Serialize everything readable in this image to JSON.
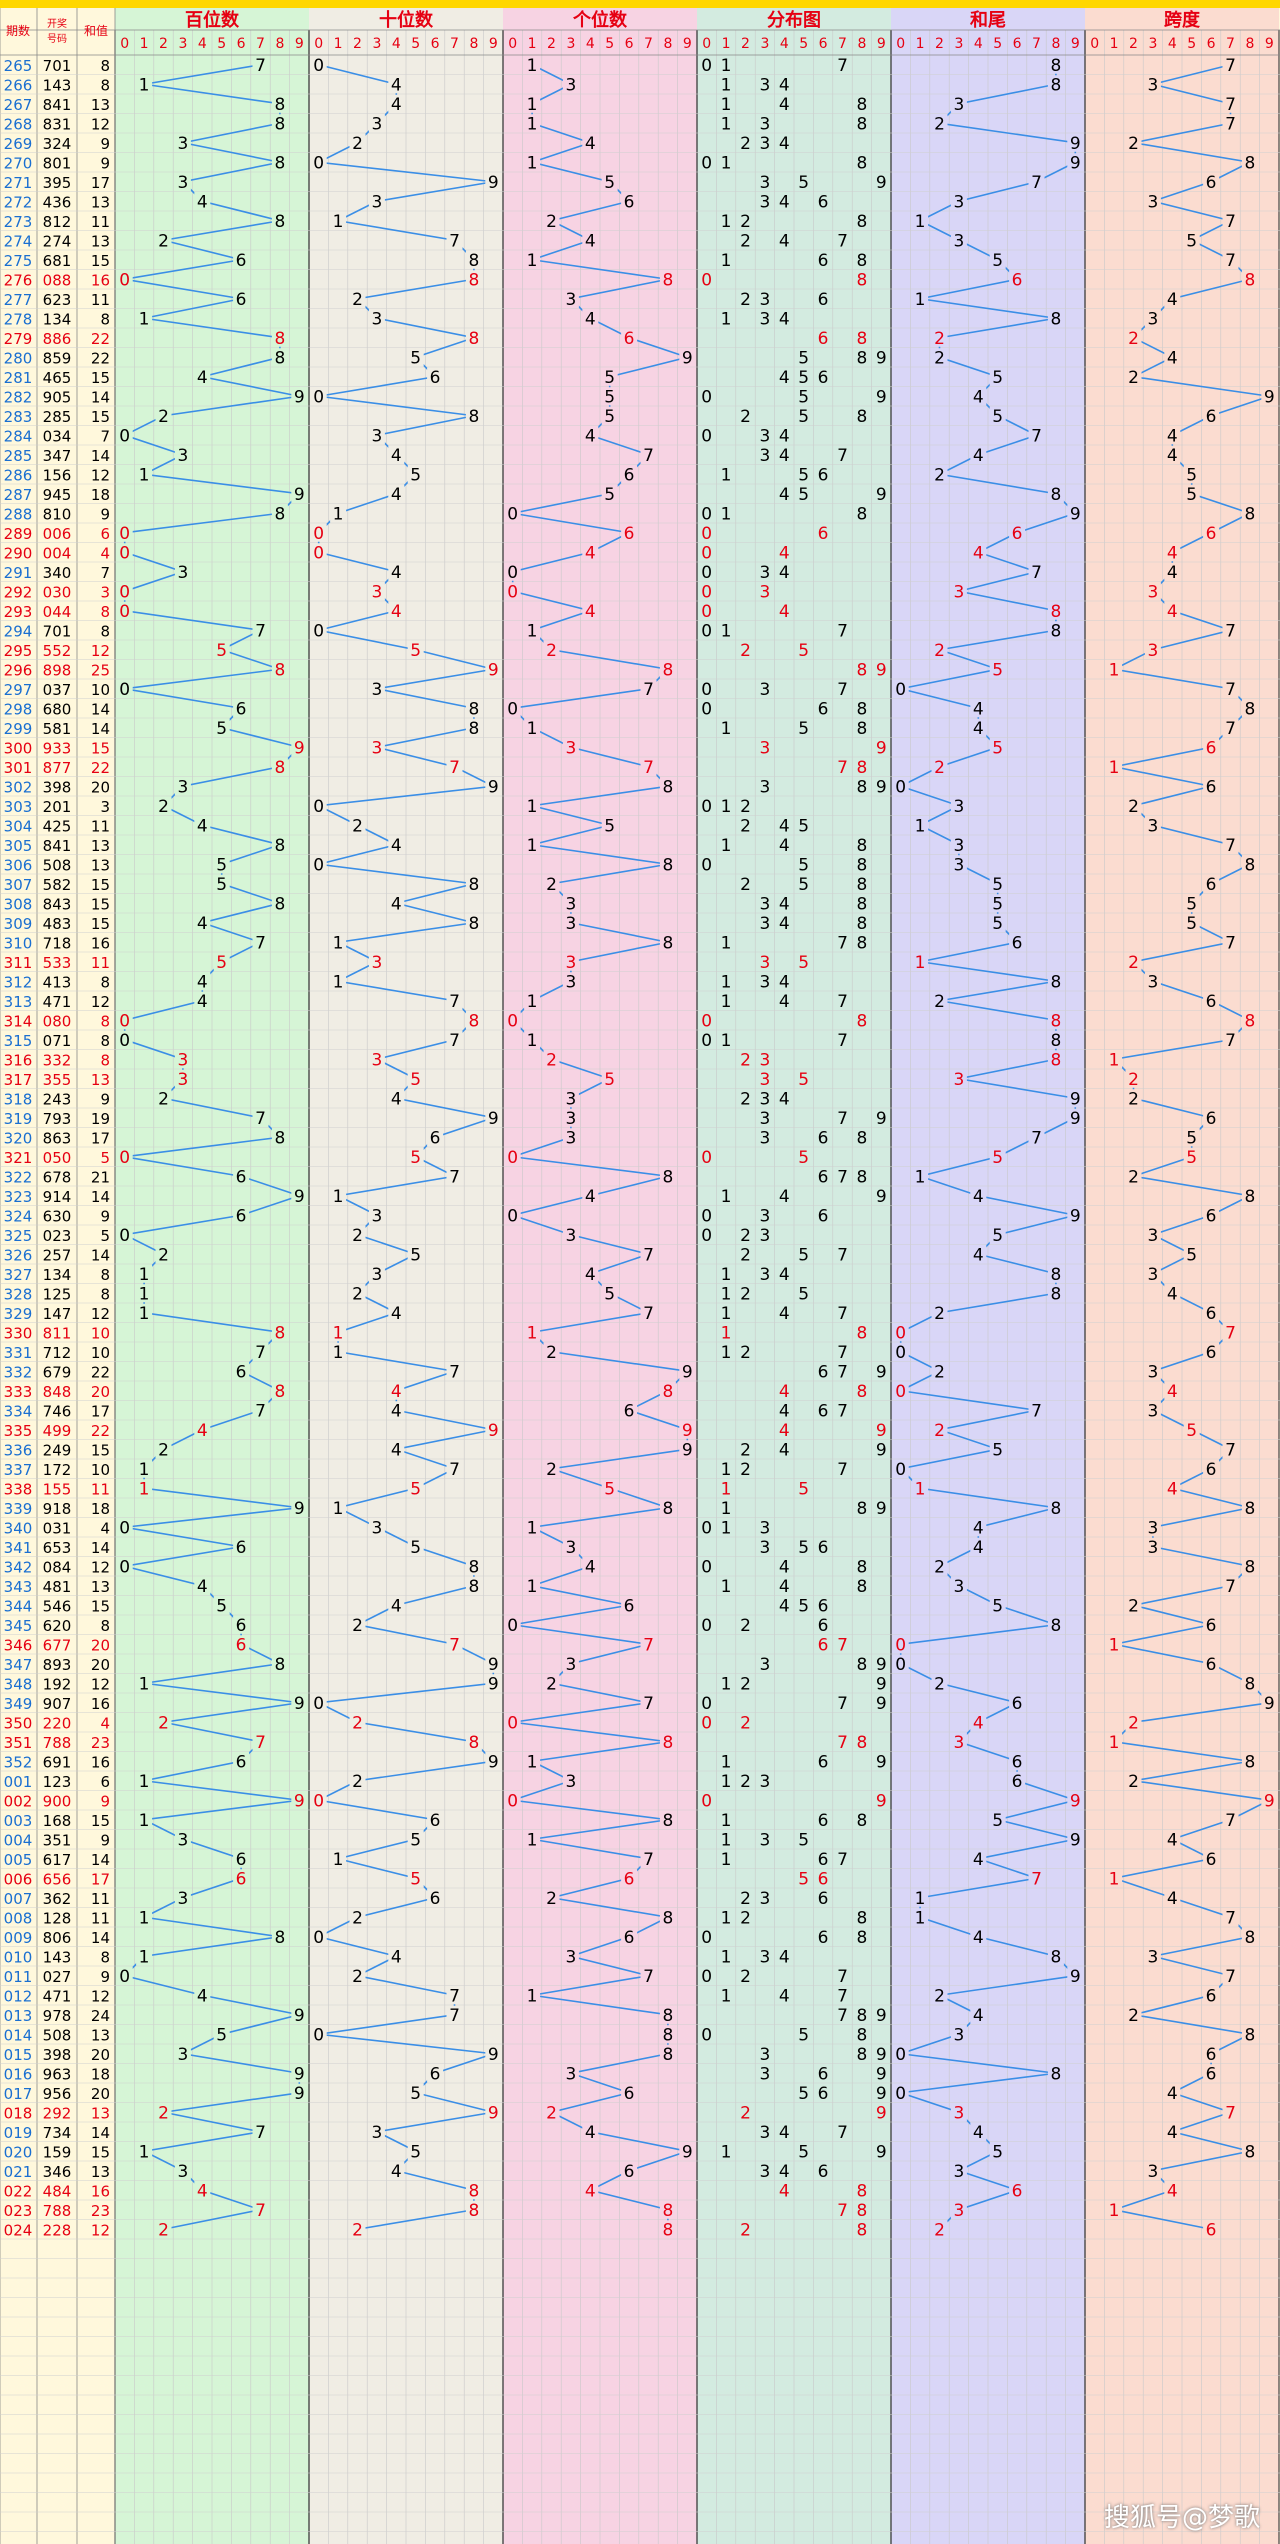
{
  "headers": {
    "period": "期数",
    "number": "开奖号码",
    "sum": "和值"
  },
  "sections": [
    "百位数",
    "十位数",
    "个位数",
    "分布图",
    "和尾",
    "跨度"
  ],
  "digits": [
    "0",
    "1",
    "2",
    "3",
    "4",
    "5",
    "6",
    "7",
    "8",
    "9"
  ],
  "watermark": "搜狐号@梦歌",
  "colors": {
    "top_bar": "#ffd700",
    "header_text": "#e60012",
    "line": "#3a8ee6",
    "highlight": "#e60012",
    "period_text": "#1a6fd1",
    "sections": [
      "#d6f5d6",
      "#f0ede4",
      "#f7d3e3",
      "#d3ebe0",
      "#d9d6f7",
      "#fbdcd0"
    ]
  },
  "chart_data": {
    "type": "table",
    "rows": [
      [
        "265",
        "701"
      ],
      [
        "266",
        "143"
      ],
      [
        "267",
        "841"
      ],
      [
        "268",
        "831"
      ],
      [
        "269",
        "324"
      ],
      [
        "270",
        "801"
      ],
      [
        "271",
        "395"
      ],
      [
        "272",
        "436"
      ],
      [
        "273",
        "812"
      ],
      [
        "274",
        "274"
      ],
      [
        "275",
        "681"
      ],
      [
        "276",
        "088"
      ],
      [
        "277",
        "623"
      ],
      [
        "278",
        "134"
      ],
      [
        "279",
        "886"
      ],
      [
        "280",
        "859"
      ],
      [
        "281",
        "465"
      ],
      [
        "282",
        "905"
      ],
      [
        "283",
        "285"
      ],
      [
        "284",
        "034"
      ],
      [
        "285",
        "347"
      ],
      [
        "286",
        "156"
      ],
      [
        "287",
        "945"
      ],
      [
        "288",
        "810"
      ],
      [
        "289",
        "006"
      ],
      [
        "290",
        "004"
      ],
      [
        "291",
        "340"
      ],
      [
        "292",
        "030"
      ],
      [
        "293",
        "044"
      ],
      [
        "294",
        "701"
      ],
      [
        "295",
        "552"
      ],
      [
        "296",
        "898"
      ],
      [
        "297",
        "037"
      ],
      [
        "298",
        "680"
      ],
      [
        "299",
        "581"
      ],
      [
        "300",
        "933"
      ],
      [
        "301",
        "877"
      ],
      [
        "302",
        "398"
      ],
      [
        "303",
        "201"
      ],
      [
        "304",
        "425"
      ],
      [
        "305",
        "841"
      ],
      [
        "306",
        "508"
      ],
      [
        "307",
        "582"
      ],
      [
        "308",
        "843"
      ],
      [
        "309",
        "483"
      ],
      [
        "310",
        "718"
      ],
      [
        "311",
        "533"
      ],
      [
        "312",
        "413"
      ],
      [
        "313",
        "471"
      ],
      [
        "314",
        "080"
      ],
      [
        "315",
        "071"
      ],
      [
        "316",
        "332"
      ],
      [
        "317",
        "355"
      ],
      [
        "318",
        "243"
      ],
      [
        "319",
        "793"
      ],
      [
        "320",
        "863"
      ],
      [
        "321",
        "050"
      ],
      [
        "322",
        "678"
      ],
      [
        "323",
        "914"
      ],
      [
        "324",
        "630"
      ],
      [
        "325",
        "023"
      ],
      [
        "326",
        "257"
      ],
      [
        "327",
        "134"
      ],
      [
        "328",
        "125"
      ],
      [
        "329",
        "147"
      ],
      [
        "330",
        "811"
      ],
      [
        "331",
        "712"
      ],
      [
        "332",
        "679"
      ],
      [
        "333",
        "848"
      ],
      [
        "334",
        "746"
      ],
      [
        "335",
        "499"
      ],
      [
        "336",
        "249"
      ],
      [
        "337",
        "172"
      ],
      [
        "338",
        "155"
      ],
      [
        "339",
        "918"
      ],
      [
        "340",
        "031"
      ],
      [
        "341",
        "653"
      ],
      [
        "342",
        "084"
      ],
      [
        "343",
        "481"
      ],
      [
        "344",
        "546"
      ],
      [
        "345",
        "620"
      ],
      [
        "346",
        "677"
      ],
      [
        "347",
        "893"
      ],
      [
        "348",
        "192"
      ],
      [
        "349",
        "907"
      ],
      [
        "350",
        "220"
      ],
      [
        "351",
        "788"
      ],
      [
        "352",
        "691"
      ],
      [
        "001",
        "123"
      ],
      [
        "002",
        "900"
      ],
      [
        "003",
        "168"
      ],
      [
        "004",
        "351"
      ],
      [
        "005",
        "617"
      ],
      [
        "006",
        "656"
      ],
      [
        "007",
        "362"
      ],
      [
        "008",
        "128"
      ],
      [
        "009",
        "806"
      ],
      [
        "010",
        "143"
      ],
      [
        "011",
        "027"
      ],
      [
        "012",
        "471"
      ],
      [
        "013",
        "978"
      ],
      [
        "014",
        "508"
      ],
      [
        "015",
        "398"
      ],
      [
        "016",
        "963"
      ],
      [
        "017",
        "956"
      ],
      [
        "018",
        "292"
      ],
      [
        "019",
        "734"
      ],
      [
        "020",
        "159"
      ],
      [
        "021",
        "346"
      ],
      [
        "022",
        "484"
      ],
      [
        "023",
        "788"
      ],
      [
        "024",
        "228"
      ]
    ]
  }
}
